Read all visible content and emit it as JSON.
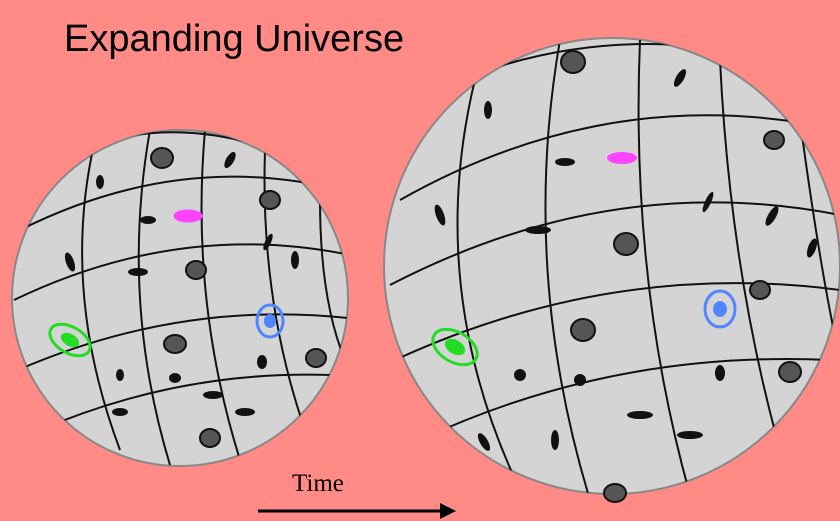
{
  "title": "Expanding Universe",
  "time_label": "Time",
  "colors": {
    "background": "#ff8a86",
    "sphere_fill": "#d4d4d4",
    "grid_line": "#111111",
    "galaxy_magenta": "#ff44ff",
    "galaxy_blue": "#4f86ff",
    "galaxy_green": "#22dd22"
  }
}
